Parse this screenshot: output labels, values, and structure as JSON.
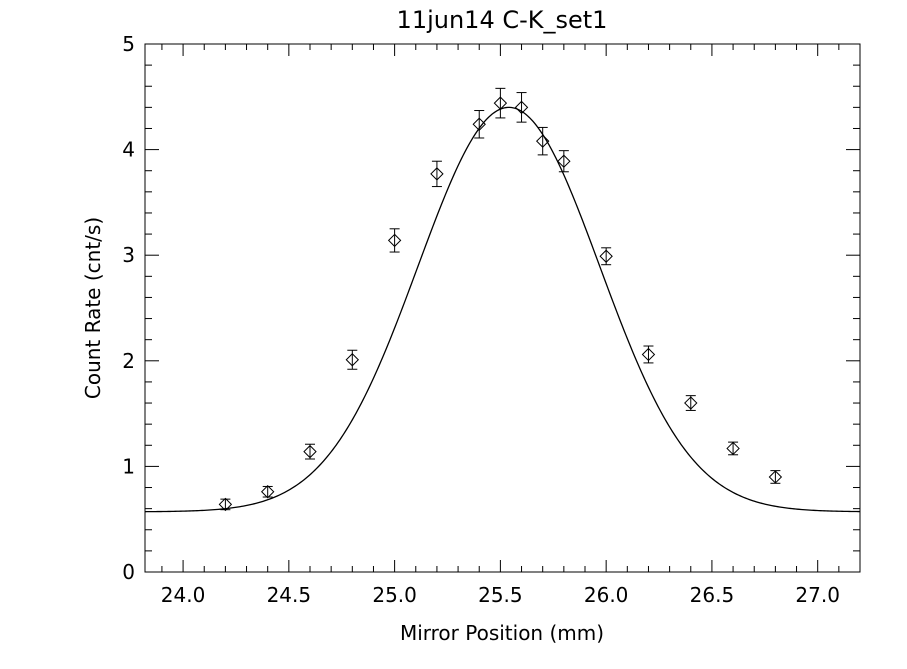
{
  "chart_data": {
    "type": "scatter",
    "title": "11jun14 C-K_set1",
    "xlabel": "Mirror Position (mm)",
    "ylabel": "Count Rate (cnt/s)",
    "xlim": [
      23.82,
      27.2
    ],
    "ylim": [
      0,
      5
    ],
    "x_ticks": [
      24.0,
      24.5,
      25.0,
      25.5,
      26.0,
      26.5,
      27.0
    ],
    "x_tick_labels": [
      "24.0",
      "24.5",
      "25.0",
      "25.5",
      "26.0",
      "26.5",
      "27.0"
    ],
    "y_ticks": [
      0,
      1,
      2,
      3,
      4,
      5
    ],
    "y_tick_labels": [
      "0",
      "1",
      "2",
      "3",
      "4",
      "5"
    ],
    "grid": false,
    "series": [
      {
        "marker": "diamond",
        "points": [
          {
            "x": 24.2,
            "y": 0.64,
            "err": 0.05
          },
          {
            "x": 24.4,
            "y": 0.76,
            "err": 0.05
          },
          {
            "x": 24.6,
            "y": 1.14,
            "err": 0.07
          },
          {
            "x": 24.8,
            "y": 2.01,
            "err": 0.09
          },
          {
            "x": 25.0,
            "y": 3.14,
            "err": 0.11
          },
          {
            "x": 25.2,
            "y": 3.77,
            "err": 0.12
          },
          {
            "x": 25.4,
            "y": 4.24,
            "err": 0.13
          },
          {
            "x": 25.5,
            "y": 4.44,
            "err": 0.14
          },
          {
            "x": 25.6,
            "y": 4.4,
            "err": 0.14
          },
          {
            "x": 25.7,
            "y": 4.08,
            "err": 0.13
          },
          {
            "x": 25.8,
            "y": 3.89,
            "err": 0.1
          },
          {
            "x": 26.0,
            "y": 2.99,
            "err": 0.08
          },
          {
            "x": 26.2,
            "y": 2.06,
            "err": 0.08
          },
          {
            "x": 26.4,
            "y": 1.6,
            "err": 0.07
          },
          {
            "x": 26.6,
            "y": 1.17,
            "err": 0.06
          },
          {
            "x": 26.8,
            "y": 0.9,
            "err": 0.06
          }
        ]
      },
      {
        "style": "line",
        "fit": {
          "baseline": 0.57,
          "amplitude": 3.83,
          "center": 25.54,
          "sigma": 0.43
        }
      }
    ]
  }
}
